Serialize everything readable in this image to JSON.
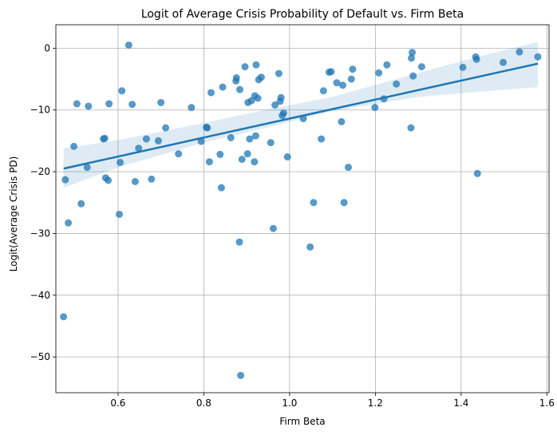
{
  "chart_data": {
    "type": "scatter",
    "title": "Logit of Average Crisis Probability of Default vs. Firm Beta",
    "xlabel": "Firm Beta",
    "ylabel": "Logit(Average Crisis PD)",
    "xlim": [
      0.455,
      1.605
    ],
    "ylim": [
      -55.8,
      3.8
    ],
    "x_ticks": [
      0.6,
      0.8,
      1.0,
      1.2,
      1.4,
      1.6
    ],
    "x_tick_labels": [
      "0.6",
      "0.8",
      "1.0",
      "1.2",
      "1.4",
      "1.6"
    ],
    "y_ticks": [
      0,
      -10,
      -20,
      -30,
      -40,
      -50
    ],
    "y_tick_labels": [
      "0",
      "−10",
      "−20",
      "−30",
      "−40",
      "−50"
    ],
    "grid": true,
    "colors": {
      "points": "#1f77b4",
      "line": "#1f77b4",
      "band": "#1f77b4",
      "grid": "#b0b0b0"
    },
    "points": [
      {
        "x": 0.473,
        "y": -43.5
      },
      {
        "x": 0.477,
        "y": -21.3
      },
      {
        "x": 0.484,
        "y": -28.3
      },
      {
        "x": 0.497,
        "y": -15.9
      },
      {
        "x": 0.504,
        "y": -9.0
      },
      {
        "x": 0.514,
        "y": -25.2
      },
      {
        "x": 0.528,
        "y": -19.3
      },
      {
        "x": 0.531,
        "y": -9.4
      },
      {
        "x": 0.566,
        "y": -14.7
      },
      {
        "x": 0.569,
        "y": -14.6
      },
      {
        "x": 0.571,
        "y": -21.0
      },
      {
        "x": 0.577,
        "y": -21.4
      },
      {
        "x": 0.579,
        "y": -9.0
      },
      {
        "x": 0.603,
        "y": -26.9
      },
      {
        "x": 0.605,
        "y": -18.5
      },
      {
        "x": 0.609,
        "y": -6.9
      },
      {
        "x": 0.625,
        "y": 0.5
      },
      {
        "x": 0.633,
        "y": -9.1
      },
      {
        "x": 0.64,
        "y": -21.6
      },
      {
        "x": 0.648,
        "y": -16.2
      },
      {
        "x": 0.666,
        "y": -14.7
      },
      {
        "x": 0.678,
        "y": -21.2
      },
      {
        "x": 0.694,
        "y": -15.0
      },
      {
        "x": 0.7,
        "y": -8.8
      },
      {
        "x": 0.711,
        "y": -12.9
      },
      {
        "x": 0.741,
        "y": -17.1
      },
      {
        "x": 0.771,
        "y": -9.6
      },
      {
        "x": 0.794,
        "y": -15.1
      },
      {
        "x": 0.806,
        "y": -12.8
      },
      {
        "x": 0.808,
        "y": -12.9
      },
      {
        "x": 0.813,
        "y": -18.4
      },
      {
        "x": 0.817,
        "y": -7.2
      },
      {
        "x": 0.838,
        "y": -17.2
      },
      {
        "x": 0.841,
        "y": -22.6
      },
      {
        "x": 0.844,
        "y": -6.3
      },
      {
        "x": 0.863,
        "y": -14.5
      },
      {
        "x": 0.875,
        "y": -5.3
      },
      {
        "x": 0.876,
        "y": -4.8
      },
      {
        "x": 0.883,
        "y": -31.4
      },
      {
        "x": 0.884,
        "y": -6.7
      },
      {
        "x": 0.886,
        "y": -53.0
      },
      {
        "x": 0.889,
        "y": -18.0
      },
      {
        "x": 0.896,
        "y": -3.0
      },
      {
        "x": 0.902,
        "y": -17.1
      },
      {
        "x": 0.903,
        "y": -8.8
      },
      {
        "x": 0.907,
        "y": -14.7
      },
      {
        "x": 0.911,
        "y": -8.5
      },
      {
        "x": 0.918,
        "y": -18.4
      },
      {
        "x": 0.919,
        "y": -7.7
      },
      {
        "x": 0.921,
        "y": -14.2
      },
      {
        "x": 0.922,
        "y": -2.7
      },
      {
        "x": 0.926,
        "y": -8.1
      },
      {
        "x": 0.928,
        "y": -5.1
      },
      {
        "x": 0.934,
        "y": -4.7
      },
      {
        "x": 0.956,
        "y": -15.3
      },
      {
        "x": 0.962,
        "y": -29.2
      },
      {
        "x": 0.966,
        "y": -9.2
      },
      {
        "x": 0.975,
        "y": -4.1
      },
      {
        "x": 0.978,
        "y": -8.6
      },
      {
        "x": 0.98,
        "y": -8.0
      },
      {
        "x": 0.983,
        "y": -10.9
      },
      {
        "x": 0.986,
        "y": -10.5
      },
      {
        "x": 0.995,
        "y": -17.6
      },
      {
        "x": 1.032,
        "y": -11.4
      },
      {
        "x": 1.048,
        "y": -32.2
      },
      {
        "x": 1.056,
        "y": -25.0
      },
      {
        "x": 1.074,
        "y": -14.7
      },
      {
        "x": 1.079,
        "y": -6.9
      },
      {
        "x": 1.092,
        "y": -3.9
      },
      {
        "x": 1.097,
        "y": -3.8
      },
      {
        "x": 1.11,
        "y": -5.6
      },
      {
        "x": 1.121,
        "y": -11.9
      },
      {
        "x": 1.124,
        "y": -6.0
      },
      {
        "x": 1.127,
        "y": -25.0
      },
      {
        "x": 1.137,
        "y": -19.3
      },
      {
        "x": 1.144,
        "y": -5.0
      },
      {
        "x": 1.147,
        "y": -3.4
      },
      {
        "x": 1.199,
        "y": -9.6
      },
      {
        "x": 1.208,
        "y": -4.0
      },
      {
        "x": 1.22,
        "y": -8.2
      },
      {
        "x": 1.227,
        "y": -2.7
      },
      {
        "x": 1.249,
        "y": -5.8
      },
      {
        "x": 1.283,
        "y": -12.9
      },
      {
        "x": 1.284,
        "y": -1.6
      },
      {
        "x": 1.286,
        "y": -0.7
      },
      {
        "x": 1.288,
        "y": -4.5
      },
      {
        "x": 1.308,
        "y": -3.0
      },
      {
        "x": 1.404,
        "y": -3.1
      },
      {
        "x": 1.434,
        "y": -1.4
      },
      {
        "x": 1.436,
        "y": -1.8
      },
      {
        "x": 1.438,
        "y": -20.3
      },
      {
        "x": 1.498,
        "y": -2.3
      },
      {
        "x": 1.536,
        "y": -0.6
      },
      {
        "x": 1.579,
        "y": -1.4
      }
    ],
    "regression": {
      "x": [
        0.473,
        1.579
      ],
      "y": [
        -19.5,
        -2.5
      ],
      "ci_lower": [
        {
          "x": 0.473,
          "y": -22.6
        },
        {
          "x": 0.6,
          "y": -19.3
        },
        {
          "x": 0.8,
          "y": -15.3
        },
        {
          "x": 0.95,
          "y": -12.8
        },
        {
          "x": 1.1,
          "y": -10.2
        },
        {
          "x": 1.3,
          "y": -7.9
        },
        {
          "x": 1.45,
          "y": -7.0
        },
        {
          "x": 1.579,
          "y": -6.3
        }
      ],
      "ci_upper": [
        {
          "x": 0.473,
          "y": -16.2
        },
        {
          "x": 0.6,
          "y": -14.9
        },
        {
          "x": 0.8,
          "y": -12.1
        },
        {
          "x": 0.95,
          "y": -9.9
        },
        {
          "x": 1.1,
          "y": -7.9
        },
        {
          "x": 1.3,
          "y": -4.0
        },
        {
          "x": 1.45,
          "y": -1.2
        },
        {
          "x": 1.579,
          "y": 1.0
        }
      ]
    }
  }
}
